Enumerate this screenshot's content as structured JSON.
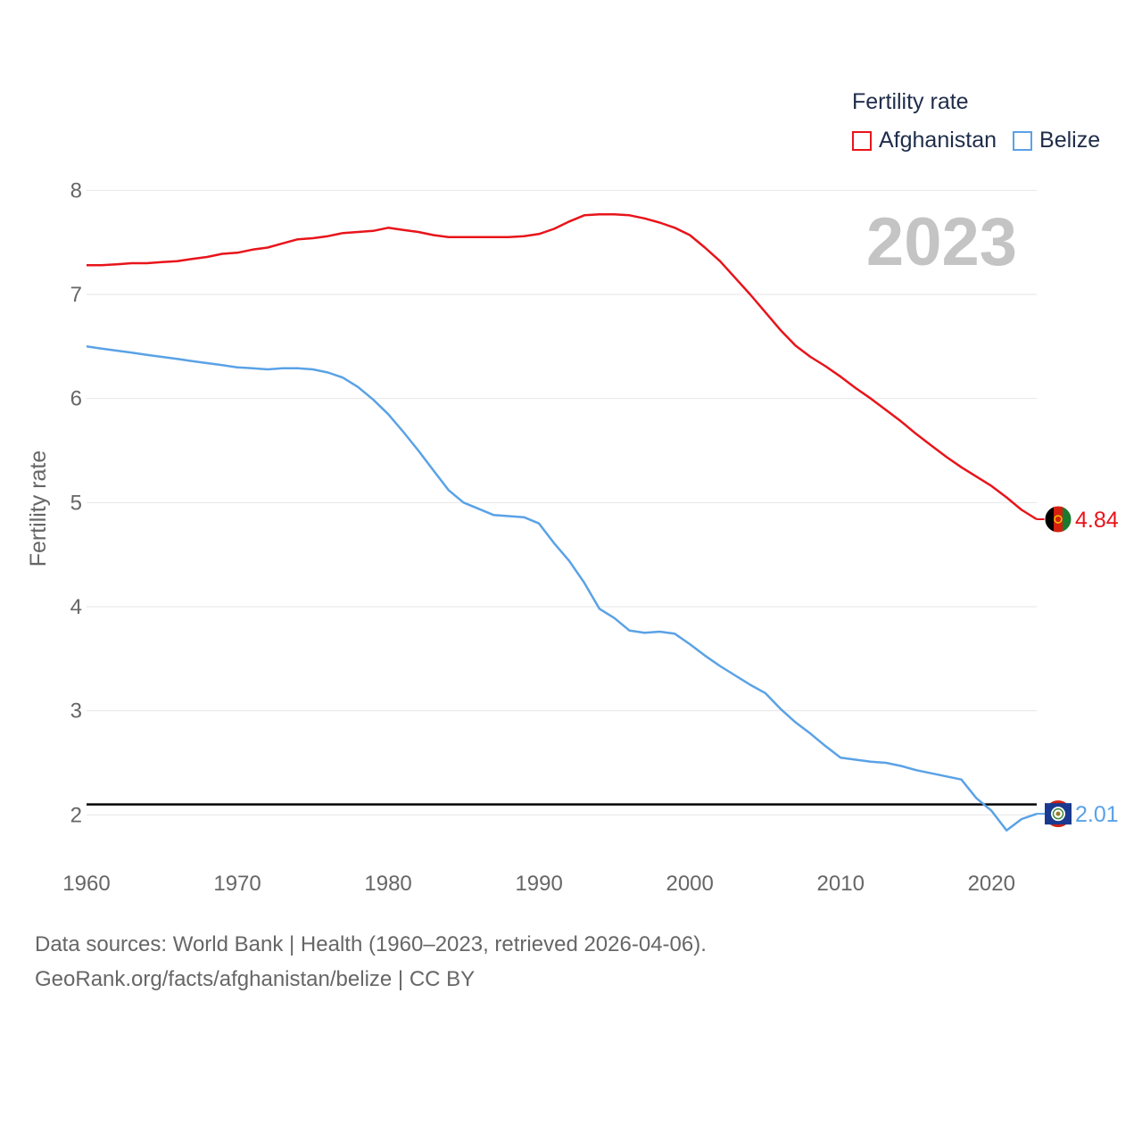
{
  "chart_data": {
    "type": "line",
    "title": "",
    "legend_title": "Fertility rate",
    "legend_position": "top-right",
    "year_display": "2023",
    "xlabel": "",
    "ylabel": "Fertility rate",
    "xlim": [
      1960,
      2023
    ],
    "ylim": [
      1.6,
      8.2
    ],
    "x_ticks": [
      1960,
      1970,
      1980,
      1990,
      2000,
      2010,
      2020
    ],
    "y_ticks": [
      2,
      3,
      4,
      5,
      6,
      7,
      8
    ],
    "grid": true,
    "reference_line": {
      "value": 2.1,
      "color": "#000000"
    },
    "x": [
      1960,
      1961,
      1962,
      1963,
      1964,
      1965,
      1966,
      1967,
      1968,
      1969,
      1970,
      1971,
      1972,
      1973,
      1974,
      1975,
      1976,
      1977,
      1978,
      1979,
      1980,
      1981,
      1982,
      1983,
      1984,
      1985,
      1986,
      1987,
      1988,
      1989,
      1990,
      1991,
      1992,
      1993,
      1994,
      1995,
      1996,
      1997,
      1998,
      1999,
      2000,
      2001,
      2002,
      2003,
      2004,
      2005,
      2006,
      2007,
      2008,
      2009,
      2010,
      2011,
      2012,
      2013,
      2014,
      2015,
      2016,
      2017,
      2018,
      2019,
      2020,
      2021,
      2022,
      2023
    ],
    "series": [
      {
        "name": "Afghanistan",
        "color": "#e8141b",
        "end_label": "4.84",
        "values": [
          7.28,
          7.28,
          7.29,
          7.3,
          7.3,
          7.31,
          7.32,
          7.34,
          7.36,
          7.39,
          7.4,
          7.43,
          7.45,
          7.49,
          7.53,
          7.54,
          7.56,
          7.59,
          7.6,
          7.61,
          7.64,
          7.62,
          7.6,
          7.57,
          7.55,
          7.55,
          7.55,
          7.55,
          7.55,
          7.56,
          7.58,
          7.63,
          7.7,
          7.76,
          7.77,
          7.77,
          7.76,
          7.73,
          7.69,
          7.64,
          7.57,
          7.45,
          7.32,
          7.16,
          7.0,
          6.83,
          6.66,
          6.51,
          6.4,
          6.31,
          6.21,
          6.1,
          6.0,
          5.89,
          5.78,
          5.66,
          5.55,
          5.44,
          5.34,
          5.25,
          5.16,
          5.05,
          4.93,
          4.84
        ]
      },
      {
        "name": "Belize",
        "color": "#5aa2e6",
        "end_label": "2.01",
        "values": [
          6.5,
          6.48,
          6.46,
          6.44,
          6.42,
          6.4,
          6.38,
          6.36,
          6.34,
          6.32,
          6.3,
          6.29,
          6.28,
          6.29,
          6.29,
          6.28,
          6.25,
          6.2,
          6.11,
          5.99,
          5.85,
          5.68,
          5.5,
          5.31,
          5.12,
          5.0,
          4.94,
          4.88,
          4.87,
          4.86,
          4.8,
          4.61,
          4.44,
          4.23,
          3.98,
          3.89,
          3.77,
          3.75,
          3.76,
          3.74,
          3.64,
          3.53,
          3.43,
          3.34,
          3.25,
          3.17,
          3.02,
          2.89,
          2.78,
          2.66,
          2.55,
          2.53,
          2.51,
          2.5,
          2.47,
          2.43,
          2.4,
          2.37,
          2.34,
          2.16,
          2.04,
          1.85,
          1.96,
          2.01
        ]
      }
    ]
  },
  "footer": {
    "line1": "Data sources: World Bank | Health (1960–2023, retrieved 2026-04-06).",
    "line2": "GeoRank.org/facts/afghanistan/belize | CC BY"
  }
}
